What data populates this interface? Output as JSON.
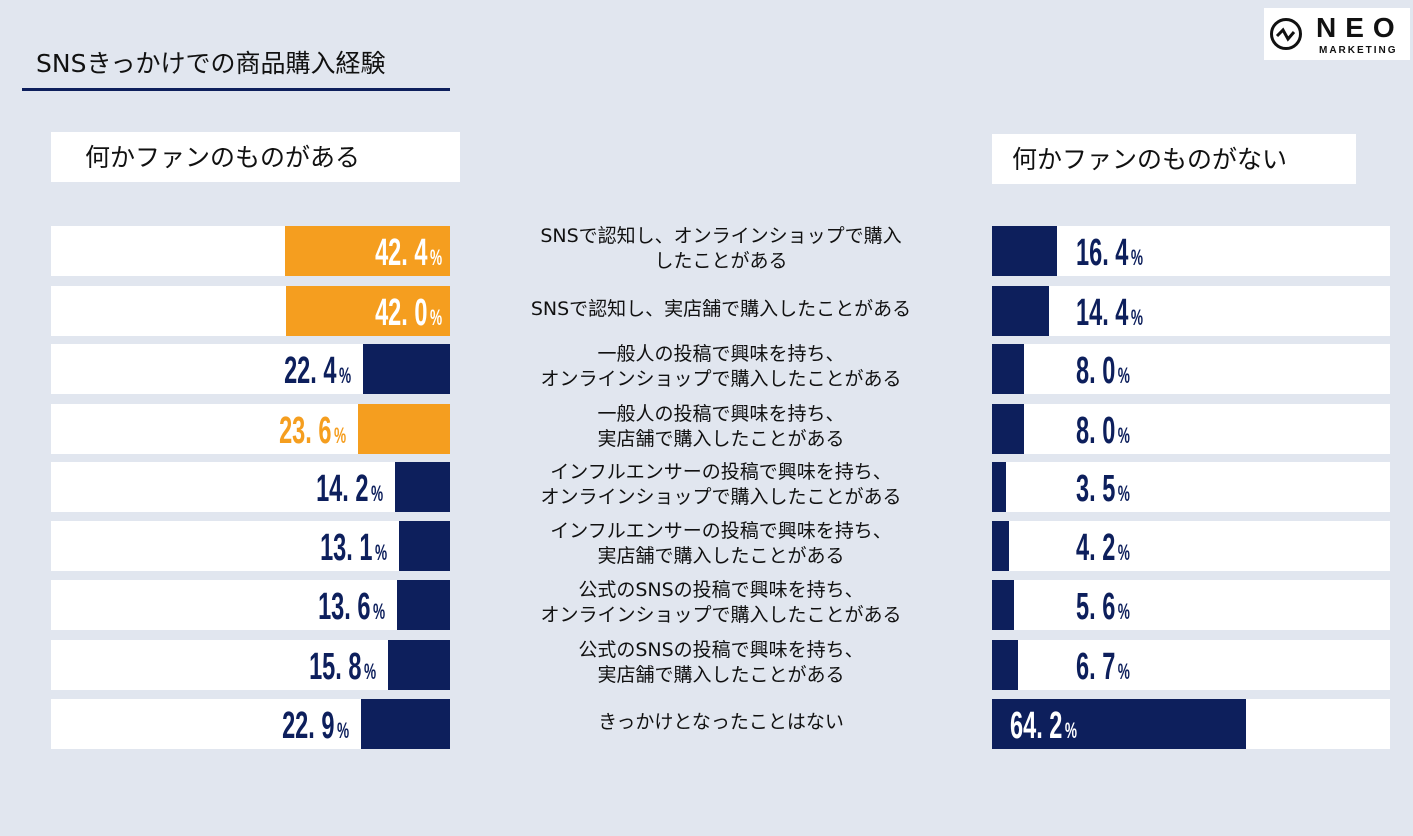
{
  "title": "SNSきっかけでの商品購入経験",
  "logo": {
    "name": "NEO",
    "sub": "MARKETING"
  },
  "colors": {
    "navy": "#0d1f5c",
    "orange": "#f59e1f",
    "white": "#ffffff"
  },
  "chart_data": {
    "type": "bar",
    "orientation": "horizontal",
    "title": "SNSきっかけでの商品購入経験",
    "unit": "%",
    "categories": [
      "SNSで認知し、オンラインショップで購入\nしたことがある",
      "SNSで認知し、実店舗で購入したことがある",
      "一般人の投稿で興味を持ち、\nオンラインショップで購入したことがある",
      "一般人の投稿で興味を持ち、\n実店舗で購入したことがある",
      "インフルエンサーの投稿で興味を持ち、\nオンラインショップで購入したことがある",
      "インフルエンサーの投稿で興味を持ち、\n実店舗で購入したことがある",
      "公式のSNSの投稿で興味を持ち、\nオンラインショップで購入したことがある",
      "公式のSNSの投稿で興味を持ち、\n実店舗で購入したことがある",
      "きっかけとなったことはない"
    ],
    "series": [
      {
        "name": "何かファンのものがある",
        "values": [
          42.4,
          42.0,
          22.4,
          23.6,
          14.2,
          13.1,
          13.6,
          15.8,
          22.9
        ],
        "highlight": [
          true,
          true,
          false,
          true,
          false,
          false,
          false,
          false,
          false
        ]
      },
      {
        "name": "何かファンのものがない",
        "values": [
          16.4,
          14.4,
          8.0,
          8.0,
          3.5,
          4.2,
          5.6,
          6.7,
          64.2
        ]
      }
    ],
    "xlim": [
      0,
      100
    ]
  }
}
